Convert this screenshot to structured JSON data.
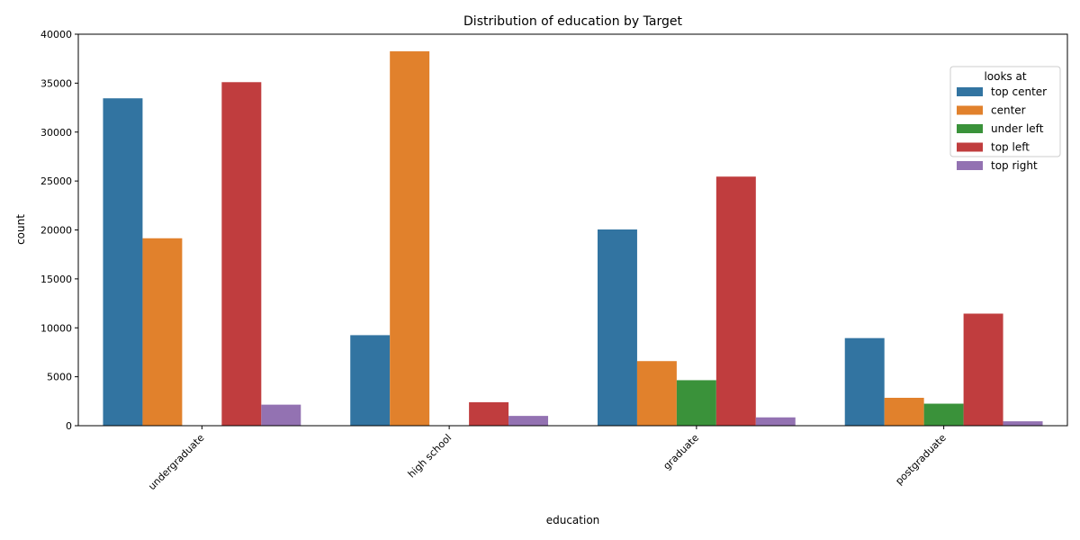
{
  "chart_data": {
    "type": "bar",
    "title": "Distribution of education by Target",
    "xlabel": "education",
    "ylabel": "count",
    "categories": [
      "undergraduate",
      "high school",
      "graduate",
      "postgraduate"
    ],
    "ylim": [
      0,
      40000
    ],
    "yticks": [
      0,
      5000,
      10000,
      15000,
      20000,
      25000,
      30000,
      35000,
      40000
    ],
    "grid": false,
    "legend": {
      "title": "looks at",
      "placement": "top-right"
    },
    "series": [
      {
        "name": "top center",
        "color": "#3274a1",
        "values": [
          33450,
          9250,
          20050,
          8950
        ]
      },
      {
        "name": "center",
        "color": "#e1812c",
        "values": [
          19150,
          38250,
          6600,
          2850
        ]
      },
      {
        "name": "under left",
        "color": "#3a923a",
        "values": [
          0,
          0,
          4650,
          2250
        ]
      },
      {
        "name": "top left",
        "color": "#c03d3e",
        "values": [
          35100,
          2400,
          25450,
          11450
        ]
      },
      {
        "name": "top right",
        "color": "#9372b2",
        "values": [
          2150,
          1000,
          850,
          450
        ]
      }
    ]
  }
}
